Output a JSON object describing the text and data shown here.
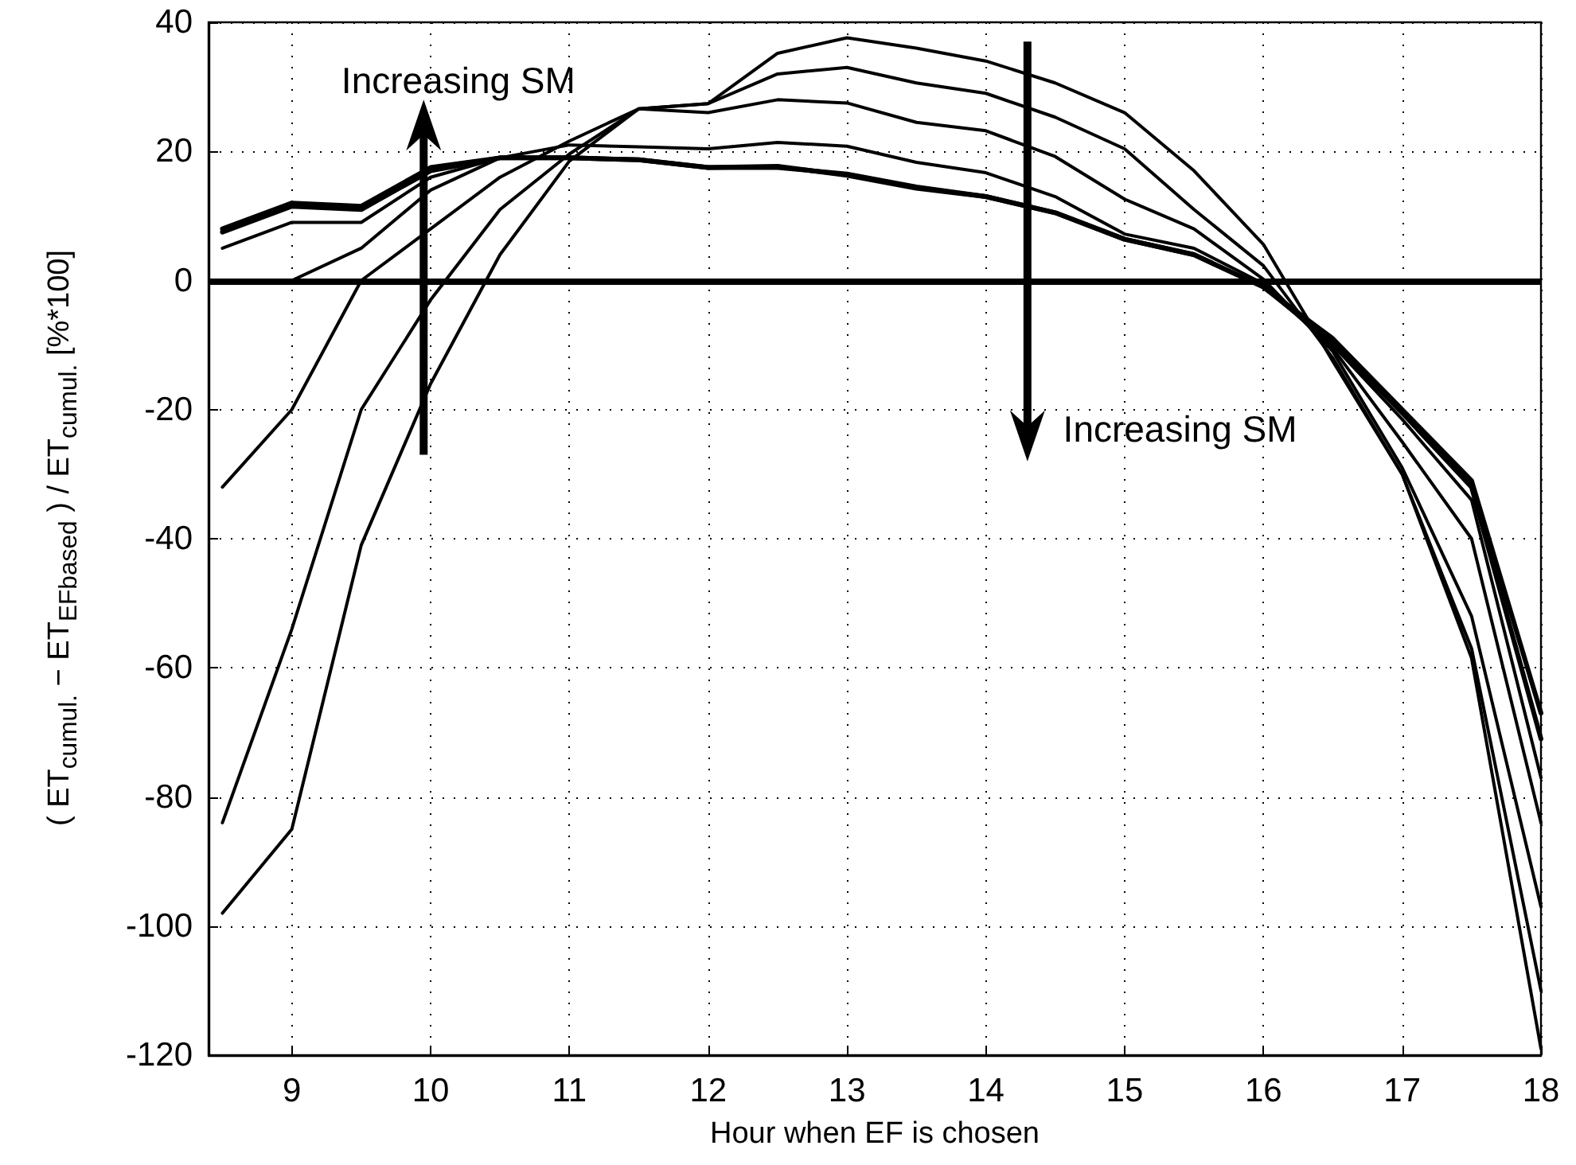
{
  "chart_data": {
    "type": "line",
    "xlabel": "Hour when EF is chosen",
    "ylabel": "( ET$_{cumul.}$ − ET$_{EFbased}$ ) / ET$_{cumul.}$ [%*100]",
    "x": [
      8.5,
      9,
      9.5,
      10,
      10.5,
      11,
      11.5,
      12,
      12.5,
      13,
      13.5,
      14,
      14.5,
      15,
      15.5,
      16,
      16.5,
      17,
      17.5,
      18
    ],
    "series": [
      {
        "color": "#000000",
        "values": [
          8,
          12,
          11.5,
          17.5,
          19,
          19,
          18.7,
          17.5,
          17.7,
          16.3,
          14.3,
          13,
          10.5,
          6.4,
          4,
          -1,
          -9,
          -20,
          -31,
          -67
        ]
      },
      {
        "color": "#000000",
        "values": [
          7.5,
          11.5,
          11,
          17,
          19,
          19,
          18.7,
          17.5,
          17.5,
          16.5,
          14.5,
          13,
          10.5,
          6.4,
          4,
          -1,
          -9.5,
          -20.5,
          -32,
          -71
        ]
      },
      {
        "color": "#000000",
        "values": [
          5,
          9,
          9,
          16,
          19,
          19,
          18.7,
          17.5,
          17.5,
          16.5,
          14.5,
          13,
          10.5,
          6.4,
          4,
          -1,
          -10,
          -21.5,
          -34,
          -77
        ]
      },
      {
        "color": "#000000",
        "values": [
          0,
          0,
          5,
          14,
          19,
          21,
          20.7,
          20.4,
          21.4,
          20.8,
          18.3,
          16.7,
          13,
          7.2,
          5,
          -0.5,
          -10.5,
          -25,
          -40,
          -84
        ]
      },
      {
        "color": "#000000",
        "values": [
          -32,
          -20,
          0,
          8,
          16,
          21.6,
          26.6,
          26,
          28,
          27.5,
          24.5,
          23.2,
          19.2,
          12.6,
          8,
          0.2,
          -11,
          -29,
          -52,
          -97
        ]
      },
      {
        "color": "#000000",
        "values": [
          -84,
          -54,
          -20,
          -3,
          11,
          19.6,
          26.6,
          27.4,
          32,
          33,
          30.6,
          29,
          25.3,
          20.4,
          11,
          2.3,
          -12,
          -30,
          -57,
          -110
        ]
      },
      {
        "color": "#000000",
        "values": [
          -98,
          -85,
          -41,
          -16,
          4,
          18.5,
          26.6,
          27.4,
          35.2,
          37.6,
          36,
          34,
          30.6,
          26,
          17,
          5.6,
          -12.5,
          -30,
          -58.5,
          -119
        ]
      }
    ],
    "xlim": [
      8.4,
      18
    ],
    "xticks": [
      9,
      10,
      11,
      12,
      13,
      14,
      15,
      16,
      17,
      18
    ],
    "ylim": [
      -120,
      40
    ],
    "yticks": [
      -120,
      -100,
      -80,
      -60,
      -40,
      -20,
      0,
      20,
      40
    ],
    "ref_lines": [
      {
        "axis": "y",
        "value": 0,
        "color": "#000000"
      }
    ],
    "annotations": [
      "Increasing SM",
      "Increasing SM"
    ],
    "grid": true,
    "marker": "none",
    "line_style": "solid"
  }
}
